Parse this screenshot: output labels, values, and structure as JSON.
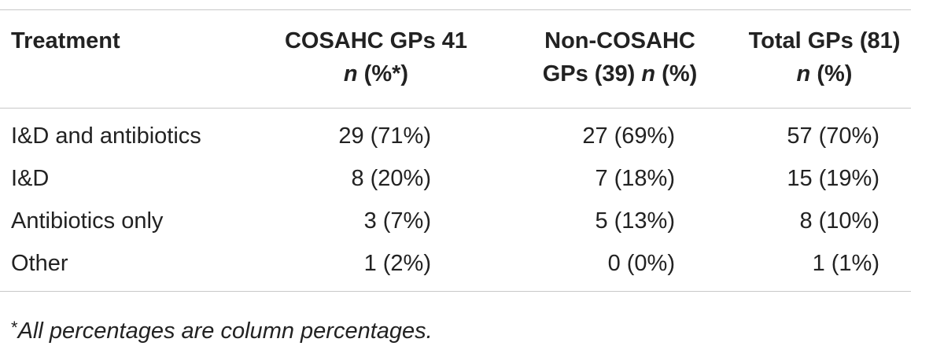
{
  "table": {
    "headers": [
      {
        "lines": [
          "Treatment"
        ],
        "italic_tail": ""
      },
      {
        "lines": [
          "COSAHC GPs 41"
        ],
        "line2_italic": "n",
        "line2_rest": " (%*)"
      },
      {
        "lines": [
          "Non-COSAHC"
        ],
        "line2_prefix": "GPs (39) ",
        "line2_italic": "n",
        "line2_rest": " (%)"
      },
      {
        "lines": [
          "Total GPs (81)"
        ],
        "line2_italic": "n",
        "line2_rest": " (%)"
      }
    ],
    "rows": [
      {
        "label": "I&D and antibiotics",
        "cosahc": "29 (71%)",
        "non_cosahc": "27 (69%)",
        "total": "57 (70%)"
      },
      {
        "label": "I&D",
        "cosahc": "8 (20%)",
        "non_cosahc": "7 (18%)",
        "total": "15 (19%)"
      },
      {
        "label": "Antibiotics only",
        "cosahc": "3 (7%)",
        "non_cosahc": "5 (13%)",
        "total": "8 (10%)"
      },
      {
        "label": "Other",
        "cosahc": "1 (2%)",
        "non_cosahc": "0 (0%)",
        "total": "1 (1%)"
      }
    ]
  },
  "footnote": {
    "marker": "*",
    "text": "All percentages are column percentages."
  }
}
